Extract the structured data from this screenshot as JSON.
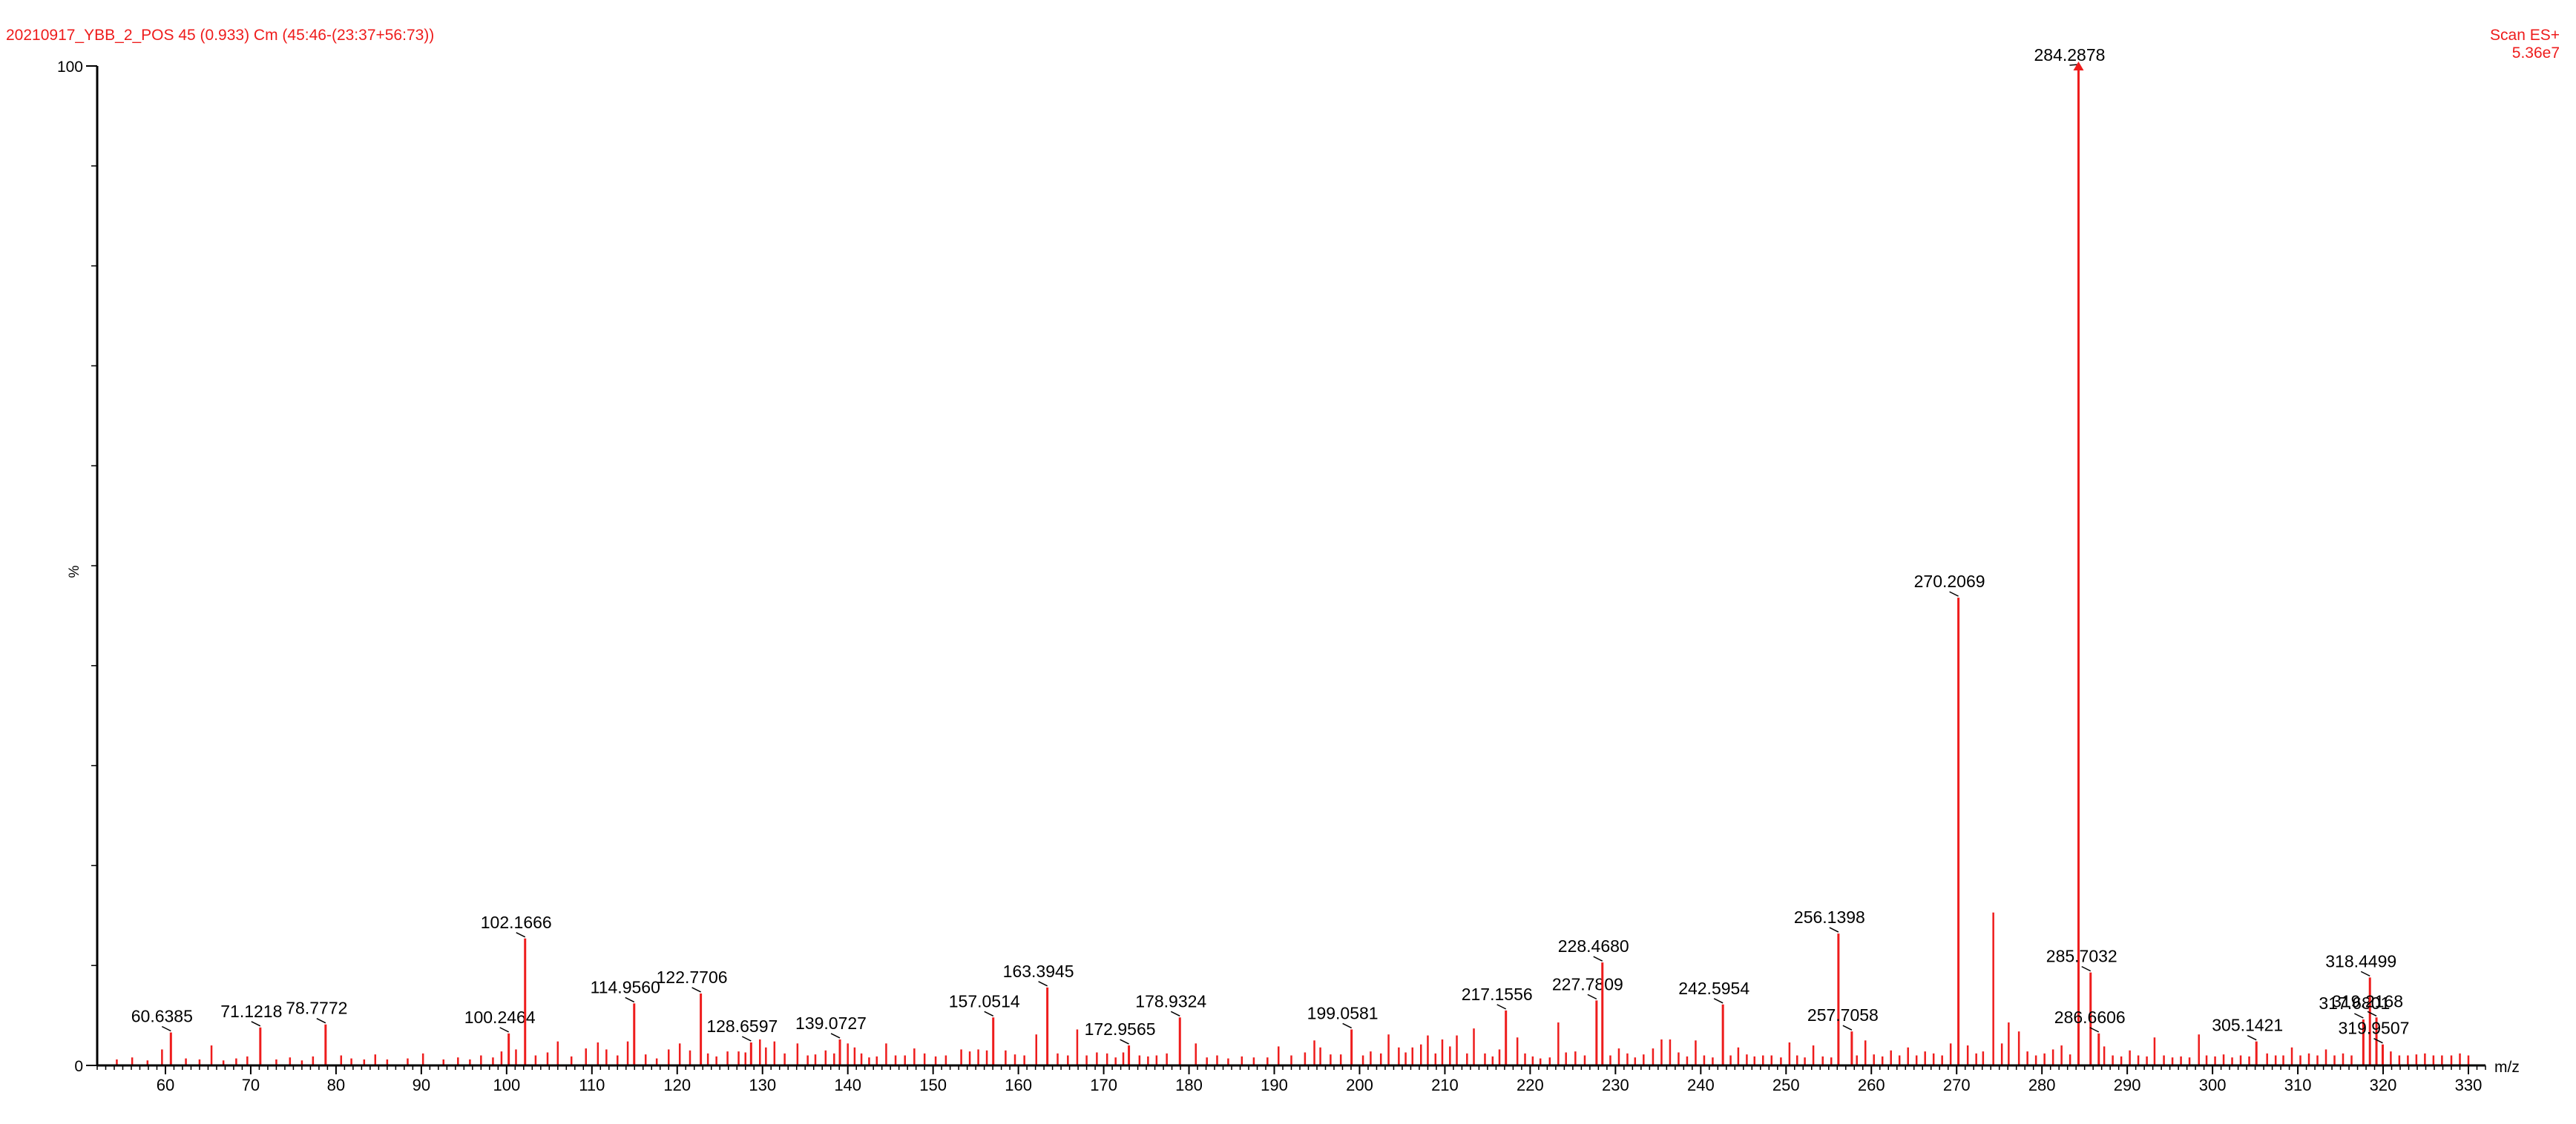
{
  "header": {
    "title": "20210917_YBB_2_POS 45 (0.933) Cm (45:46-(23:37+56:73))",
    "scan_mode": "Scan ES+",
    "scan_intensity": "5.36e7"
  },
  "colors": {
    "spectrum": "#ee1c1c",
    "axis": "#000000"
  },
  "chart_data": {
    "type": "bar",
    "xlabel": "m/z",
    "ylabel": "%",
    "xlim": [
      52,
      332
    ],
    "ylim": [
      0,
      100
    ],
    "x_ticks": [
      60,
      70,
      80,
      90,
      100,
      110,
      120,
      130,
      140,
      150,
      160,
      170,
      180,
      190,
      200,
      210,
      220,
      230,
      240,
      250,
      260,
      270,
      280,
      290,
      300,
      310,
      320,
      330
    ],
    "y_tick_labels": [
      "0",
      "%",
      "100"
    ],
    "grid": false,
    "labeled_peaks": [
      {
        "mz": 60.6385,
        "intensity": 3.3,
        "label": "60.6385"
      },
      {
        "mz": 71.1218,
        "intensity": 3.8,
        "label": "71.1218"
      },
      {
        "mz": 78.7772,
        "intensity": 4.1,
        "label": "78.7772"
      },
      {
        "mz": 100.2464,
        "intensity": 3.2,
        "label": "100.2464"
      },
      {
        "mz": 102.1666,
        "intensity": 12.7,
        "label": "102.1666"
      },
      {
        "mz": 114.956,
        "intensity": 6.2,
        "label": "114.9560"
      },
      {
        "mz": 122.7706,
        "intensity": 7.2,
        "label": "122.7706"
      },
      {
        "mz": 128.6597,
        "intensity": 2.3,
        "label": "128.6597"
      },
      {
        "mz": 139.0727,
        "intensity": 2.6,
        "label": "139.0727"
      },
      {
        "mz": 157.0514,
        "intensity": 4.8,
        "label": "157.0514"
      },
      {
        "mz": 163.3945,
        "intensity": 7.8,
        "label": "163.3945"
      },
      {
        "mz": 172.9565,
        "intensity": 2.0,
        "label": "172.9565"
      },
      {
        "mz": 178.9324,
        "intensity": 4.8,
        "label": "178.9324"
      },
      {
        "mz": 199.0581,
        "intensity": 3.6,
        "label": "199.0581"
      },
      {
        "mz": 217.1556,
        "intensity": 5.5,
        "label": "217.1556"
      },
      {
        "mz": 227.7809,
        "intensity": 6.5,
        "label": "227.7809"
      },
      {
        "mz": 228.468,
        "intensity": 10.3,
        "label": "228.4680"
      },
      {
        "mz": 242.5954,
        "intensity": 6.1,
        "label": "242.5954"
      },
      {
        "mz": 256.1398,
        "intensity": 13.2,
        "label": "256.1398"
      },
      {
        "mz": 257.7058,
        "intensity": 3.4,
        "label": "257.7058"
      },
      {
        "mz": 270.2069,
        "intensity": 46.8,
        "label": "270.2069"
      },
      {
        "mz": 284.2878,
        "intensity": 100.0,
        "label": "284.2878"
      },
      {
        "mz": 285.7032,
        "intensity": 9.3,
        "label": "285.7032"
      },
      {
        "mz": 286.6606,
        "intensity": 3.2,
        "label": "286.6606"
      },
      {
        "mz": 305.1421,
        "intensity": 2.4,
        "label": "305.1421"
      },
      {
        "mz": 317.6801,
        "intensity": 4.6,
        "label": "317.6801"
      },
      {
        "mz": 318.4499,
        "intensity": 8.8,
        "label": "318.4499"
      },
      {
        "mz": 319.2168,
        "intensity": 4.8,
        "label": "319.2168"
      },
      {
        "mz": 319.9507,
        "intensity": 2.1,
        "label": "319.9507"
      }
    ],
    "unlabeled_peaks": [
      [
        54.3,
        0.6
      ],
      [
        56.1,
        0.8
      ],
      [
        57.9,
        0.5
      ],
      [
        59.6,
        1.6
      ],
      [
        62.4,
        0.7
      ],
      [
        64.0,
        0.6
      ],
      [
        65.4,
        2.0
      ],
      [
        66.8,
        0.5
      ],
      [
        68.3,
        0.7
      ],
      [
        69.6,
        0.9
      ],
      [
        73.0,
        0.6
      ],
      [
        74.6,
        0.8
      ],
      [
        76.0,
        0.5
      ],
      [
        77.3,
        0.9
      ],
      [
        80.6,
        1.0
      ],
      [
        81.8,
        0.7
      ],
      [
        83.3,
        0.6
      ],
      [
        84.6,
        1.1
      ],
      [
        86.0,
        0.6
      ],
      [
        88.4,
        0.7
      ],
      [
        90.2,
        1.2
      ],
      [
        92.6,
        0.6
      ],
      [
        94.3,
        0.8
      ],
      [
        95.7,
        0.6
      ],
      [
        97.0,
        1.0
      ],
      [
        98.4,
        0.8
      ],
      [
        99.4,
        1.4
      ],
      [
        101.1,
        1.6
      ],
      [
        103.4,
        1.0
      ],
      [
        104.8,
        1.3
      ],
      [
        106.0,
        2.4
      ],
      [
        107.6,
        0.9
      ],
      [
        109.3,
        1.7
      ],
      [
        110.7,
        2.3
      ],
      [
        111.7,
        1.6
      ],
      [
        113.0,
        1.0
      ],
      [
        114.2,
        2.4
      ],
      [
        116.3,
        1.1
      ],
      [
        117.6,
        0.7
      ],
      [
        119.0,
        1.6
      ],
      [
        120.3,
        2.2
      ],
      [
        121.5,
        1.5
      ],
      [
        123.6,
        1.2
      ],
      [
        124.6,
        0.9
      ],
      [
        125.9,
        1.4
      ],
      [
        127.2,
        1.4
      ],
      [
        128.0,
        1.3
      ],
      [
        129.7,
        2.6
      ],
      [
        130.4,
        1.8
      ],
      [
        131.4,
        2.4
      ],
      [
        132.6,
        1.2
      ],
      [
        134.1,
        2.2
      ],
      [
        135.3,
        1.0
      ],
      [
        136.2,
        1.1
      ],
      [
        137.4,
        1.5
      ],
      [
        138.4,
        1.2
      ],
      [
        140.0,
        2.2
      ],
      [
        140.8,
        1.8
      ],
      [
        141.6,
        1.2
      ],
      [
        142.5,
        0.8
      ],
      [
        143.4,
        0.9
      ],
      [
        144.5,
        2.2
      ],
      [
        145.6,
        1.0
      ],
      [
        146.7,
        1.0
      ],
      [
        147.8,
        1.7
      ],
      [
        149.0,
        1.2
      ],
      [
        150.3,
        0.9
      ],
      [
        151.5,
        1.0
      ],
      [
        153.3,
        1.6
      ],
      [
        154.3,
        1.4
      ],
      [
        155.3,
        1.6
      ],
      [
        156.3,
        1.5
      ],
      [
        158.5,
        1.5
      ],
      [
        159.6,
        1.1
      ],
      [
        160.7,
        1.0
      ],
      [
        162.1,
        3.1
      ],
      [
        164.6,
        1.2
      ],
      [
        165.8,
        1.0
      ],
      [
        166.9,
        3.6
      ],
      [
        168.0,
        1.0
      ],
      [
        169.2,
        1.3
      ],
      [
        170.4,
        1.2
      ],
      [
        171.4,
        0.8
      ],
      [
        172.3,
        1.3
      ],
      [
        174.2,
        1.0
      ],
      [
        175.2,
        0.9
      ],
      [
        176.2,
        1.0
      ],
      [
        177.4,
        1.2
      ],
      [
        180.8,
        2.2
      ],
      [
        182.1,
        0.8
      ],
      [
        183.3,
        1.0
      ],
      [
        184.6,
        0.7
      ],
      [
        186.2,
        0.9
      ],
      [
        187.6,
        0.8
      ],
      [
        189.2,
        0.8
      ],
      [
        190.5,
        1.9
      ],
      [
        192.0,
        1.0
      ],
      [
        193.6,
        1.3
      ],
      [
        194.7,
        2.5
      ],
      [
        195.4,
        1.8
      ],
      [
        196.6,
        1.1
      ],
      [
        197.8,
        1.1
      ],
      [
        200.4,
        1.0
      ],
      [
        201.3,
        1.4
      ],
      [
        202.5,
        1.2
      ],
      [
        203.4,
        3.1
      ],
      [
        204.6,
        1.8
      ],
      [
        205.4,
        1.3
      ],
      [
        206.2,
        1.8
      ],
      [
        207.2,
        2.1
      ],
      [
        208.0,
        3.0
      ],
      [
        208.9,
        1.2
      ],
      [
        209.7,
        2.6
      ],
      [
        210.6,
        1.9
      ],
      [
        211.4,
        3.0
      ],
      [
        212.6,
        1.2
      ],
      [
        213.4,
        3.7
      ],
      [
        214.7,
        1.2
      ],
      [
        215.6,
        0.9
      ],
      [
        216.4,
        1.6
      ],
      [
        218.5,
        2.8
      ],
      [
        219.4,
        1.2
      ],
      [
        220.3,
        0.9
      ],
      [
        221.2,
        0.7
      ],
      [
        222.3,
        0.8
      ],
      [
        223.3,
        4.3
      ],
      [
        224.2,
        1.3
      ],
      [
        225.3,
        1.4
      ],
      [
        226.4,
        1.0
      ],
      [
        229.4,
        1.0
      ],
      [
        230.4,
        1.7
      ],
      [
        231.4,
        1.2
      ],
      [
        232.3,
        0.8
      ],
      [
        233.3,
        1.1
      ],
      [
        234.4,
        1.7
      ],
      [
        235.4,
        2.6
      ],
      [
        236.4,
        2.6
      ],
      [
        237.4,
        1.3
      ],
      [
        238.4,
        0.9
      ],
      [
        239.4,
        2.5
      ],
      [
        240.4,
        1.0
      ],
      [
        241.4,
        0.8
      ],
      [
        243.5,
        1.0
      ],
      [
        244.4,
        1.8
      ],
      [
        245.4,
        1.1
      ],
      [
        246.3,
        0.9
      ],
      [
        247.3,
        1.0
      ],
      [
        248.3,
        1.0
      ],
      [
        249.4,
        0.8
      ],
      [
        250.4,
        2.3
      ],
      [
        251.3,
        1.0
      ],
      [
        252.2,
        0.8
      ],
      [
        253.2,
        2.0
      ],
      [
        254.3,
        0.9
      ],
      [
        255.3,
        0.8
      ],
      [
        258.3,
        1.0
      ],
      [
        259.3,
        2.5
      ],
      [
        260.3,
        1.1
      ],
      [
        261.3,
        0.9
      ],
      [
        262.3,
        1.5
      ],
      [
        263.3,
        1.0
      ],
      [
        264.3,
        1.8
      ],
      [
        265.3,
        1.0
      ],
      [
        266.3,
        1.4
      ],
      [
        267.3,
        1.2
      ],
      [
        268.3,
        1.0
      ],
      [
        269.3,
        2.2
      ],
      [
        271.3,
        2.0
      ],
      [
        272.3,
        1.2
      ],
      [
        273.1,
        1.4
      ],
      [
        274.3,
        15.3
      ],
      [
        275.3,
        2.2
      ],
      [
        276.1,
        4.3
      ],
      [
        277.3,
        3.4
      ],
      [
        278.3,
        1.4
      ],
      [
        279.3,
        1.0
      ],
      [
        280.3,
        1.2
      ],
      [
        281.3,
        1.6
      ],
      [
        282.3,
        2.0
      ],
      [
        283.3,
        1.1
      ],
      [
        287.3,
        1.9
      ],
      [
        288.3,
        1.0
      ],
      [
        289.3,
        0.9
      ],
      [
        290.3,
        1.5
      ],
      [
        291.3,
        1.0
      ],
      [
        292.3,
        0.9
      ],
      [
        293.2,
        2.8
      ],
      [
        294.3,
        1.0
      ],
      [
        295.3,
        0.8
      ],
      [
        296.3,
        0.9
      ],
      [
        297.3,
        0.8
      ],
      [
        298.4,
        3.1
      ],
      [
        299.3,
        1.0
      ],
      [
        300.3,
        0.9
      ],
      [
        301.3,
        1.1
      ],
      [
        302.3,
        0.8
      ],
      [
        303.3,
        1.0
      ],
      [
        304.3,
        0.9
      ],
      [
        306.4,
        1.2
      ],
      [
        307.4,
        1.0
      ],
      [
        308.3,
        1.0
      ],
      [
        309.3,
        1.8
      ],
      [
        310.3,
        1.0
      ],
      [
        311.3,
        1.2
      ],
      [
        312.3,
        1.0
      ],
      [
        313.3,
        1.6
      ],
      [
        314.3,
        1.0
      ],
      [
        315.3,
        1.2
      ],
      [
        316.3,
        1.0
      ],
      [
        320.9,
        1.4
      ],
      [
        321.9,
        1.0
      ],
      [
        322.9,
        1.0
      ],
      [
        323.9,
        1.1
      ],
      [
        324.9,
        1.2
      ],
      [
        325.9,
        1.0
      ],
      [
        326.9,
        1.0
      ],
      [
        328.0,
        1.0
      ],
      [
        329.0,
        1.2
      ],
      [
        330.0,
        1.0
      ]
    ]
  }
}
